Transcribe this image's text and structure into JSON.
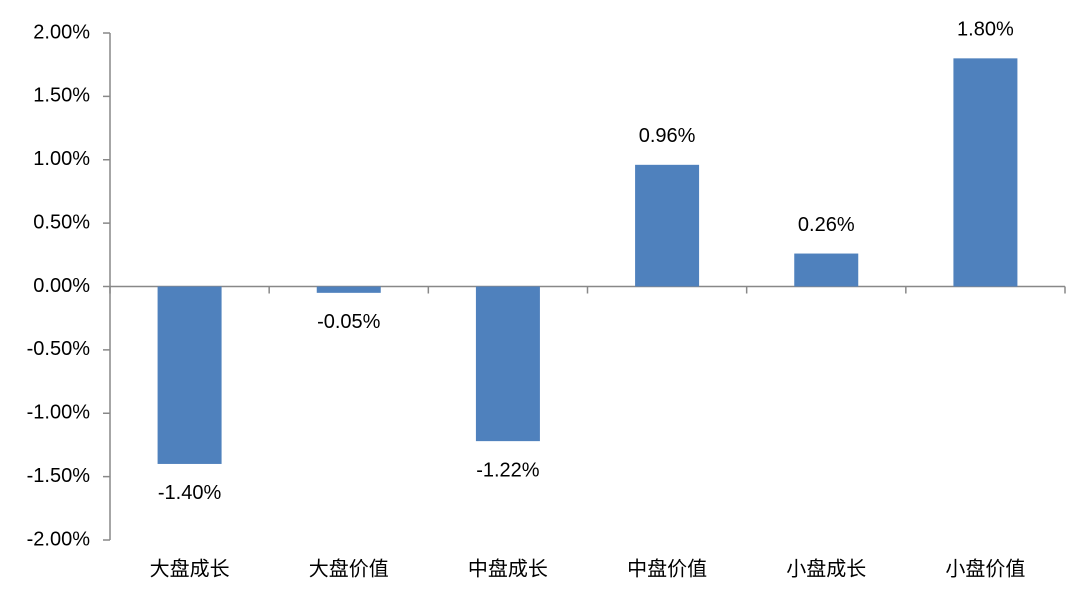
{
  "chart_data": {
    "type": "bar",
    "categories": [
      "大盘成长",
      "大盘价值",
      "中盘成长",
      "中盘价值",
      "小盘成长",
      "小盘价值"
    ],
    "values": [
      -1.4,
      -0.05,
      -1.22,
      0.96,
      0.26,
      1.8
    ],
    "value_labels": [
      "-1.40%",
      "-0.05%",
      "-1.22%",
      "0.96%",
      "0.26%",
      "1.80%"
    ],
    "color": "#4f81bd",
    "ylim": [
      -2,
      2
    ],
    "yticks": [
      {
        "value": 2,
        "label": "2.00%"
      },
      {
        "value": 1.5,
        "label": "1.50%"
      },
      {
        "value": 1,
        "label": "1.00%"
      },
      {
        "value": 0.5,
        "label": "0.50%"
      },
      {
        "value": 0,
        "label": "0.00%"
      },
      {
        "value": -0.5,
        "label": "-0.50%"
      },
      {
        "value": -1,
        "label": "-1.00%"
      },
      {
        "value": -1.5,
        "label": "-1.50%"
      },
      {
        "value": -2,
        "label": "-2.00%"
      }
    ],
    "grid": false
  }
}
